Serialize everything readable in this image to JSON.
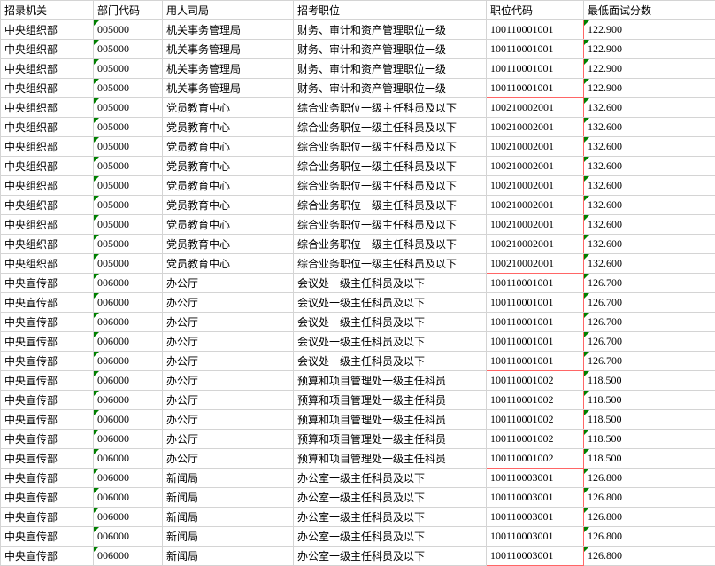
{
  "table": {
    "columns": [
      "招录机关",
      "部门代码",
      "用人司局",
      "招考职位",
      "职位代码",
      "最低面试分数"
    ],
    "col_classes": [
      "col-agency",
      "col-deptcode",
      "col-dept",
      "col-position",
      "col-poscode",
      "col-score"
    ],
    "groups": [
      {
        "count": 4,
        "row": [
          "中央组织部",
          "005000",
          "机关事务管理局",
          "财务、审计和资产管理职位一级",
          "100110001001",
          "122.900"
        ]
      },
      {
        "count": 9,
        "row": [
          "中央组织部",
          "005000",
          "党员教育中心",
          "综合业务职位一级主任科员及以下",
          "100210002001",
          "132.600"
        ]
      },
      {
        "count": 5,
        "row": [
          "中央宣传部",
          "006000",
          "办公厅",
          "会议处一级主任科员及以下",
          "100110001001",
          "126.700"
        ]
      },
      {
        "count": 5,
        "row": [
          "中央宣传部",
          "006000",
          "办公厅",
          "预算和项目管理处一级主任科员",
          "100110001002",
          "118.500"
        ]
      },
      {
        "count": 5,
        "row": [
          "中央宣传部",
          "006000",
          "新闻局",
          "办公室一级主任科员及以下",
          "100110003001",
          "126.800"
        ]
      }
    ],
    "highlight_col_index": 4,
    "marker_cols": [
      1,
      5
    ],
    "colors": {
      "border": "#d4d4d4",
      "highlight": "#ff6666",
      "marker": "#008000",
      "bg": "#ffffff"
    }
  }
}
